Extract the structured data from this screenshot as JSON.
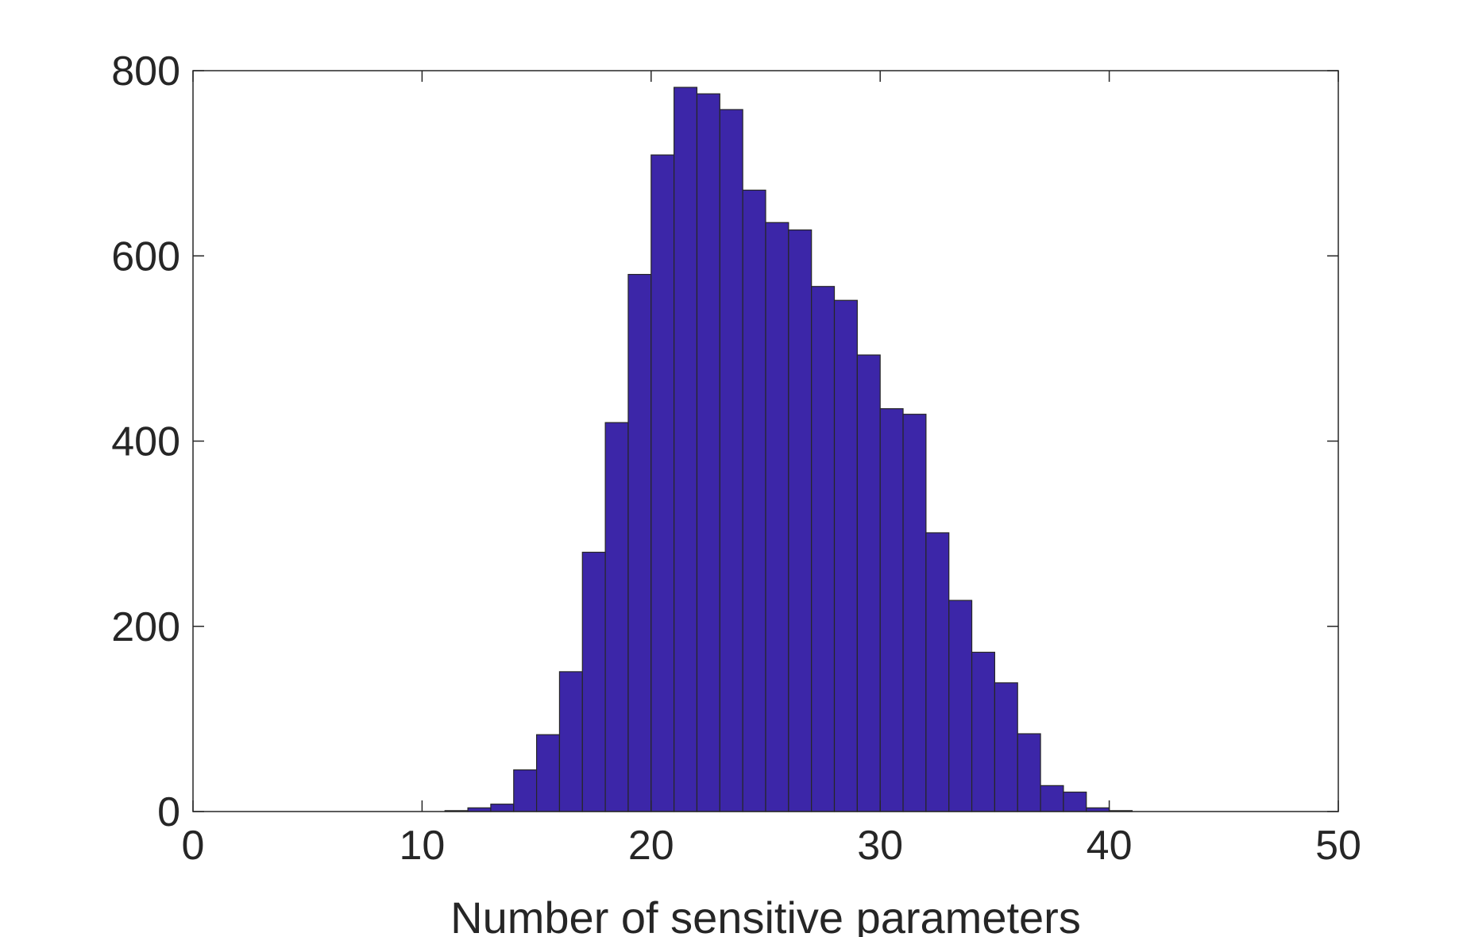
{
  "chart_data": {
    "type": "bar",
    "title": "",
    "xlabel": "Number of sensitive parameters",
    "ylabel": "",
    "xlim": [
      0,
      50
    ],
    "ylim": [
      0,
      800
    ],
    "xticks": [
      0,
      10,
      20,
      30,
      40,
      50
    ],
    "yticks": [
      0,
      200,
      400,
      600,
      800
    ],
    "xtick_labels": [
      "0",
      "10",
      "20",
      "30",
      "40",
      "50"
    ],
    "ytick_labels": [
      "0",
      "200",
      "400",
      "600",
      "800"
    ],
    "grid": false,
    "bin_width": 1,
    "bin_edges_start": 11,
    "values": [
      1,
      4,
      8,
      45,
      83,
      151,
      280,
      420,
      580,
      709,
      782,
      775,
      758,
      671,
      636,
      628,
      567,
      552,
      493,
      435,
      429,
      301,
      228,
      172,
      139,
      84,
      28,
      21,
      4,
      1,
      0,
      0,
      0
    ],
    "colors": {
      "bar_fill": "#3c26a8",
      "bar_edge": "#262626",
      "axis": "#262626"
    }
  }
}
